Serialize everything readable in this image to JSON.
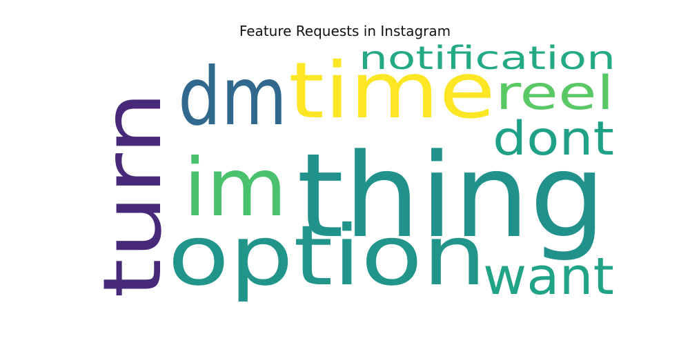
{
  "title": "Feature Requests in Instagram",
  "words": [
    {
      "text": "thing",
      "color": "#21918c",
      "weight": 1.0
    },
    {
      "text": "option",
      "color": "#22958b",
      "weight": 0.82
    },
    {
      "text": "time",
      "color": "#fde725",
      "weight": 0.72
    },
    {
      "text": "turn",
      "color": "#482878",
      "weight": 0.62
    },
    {
      "text": "dm",
      "color": "#31688e",
      "weight": 0.62
    },
    {
      "text": "im",
      "color": "#4ac16d",
      "weight": 0.62
    },
    {
      "text": "want",
      "color": "#20a386",
      "weight": 0.4
    },
    {
      "text": "reel",
      "color": "#5ac864",
      "weight": 0.36
    },
    {
      "text": "dont",
      "color": "#1fa187",
      "weight": 0.36
    },
    {
      "text": "notification",
      "color": "#23a983",
      "weight": 0.22
    }
  ]
}
